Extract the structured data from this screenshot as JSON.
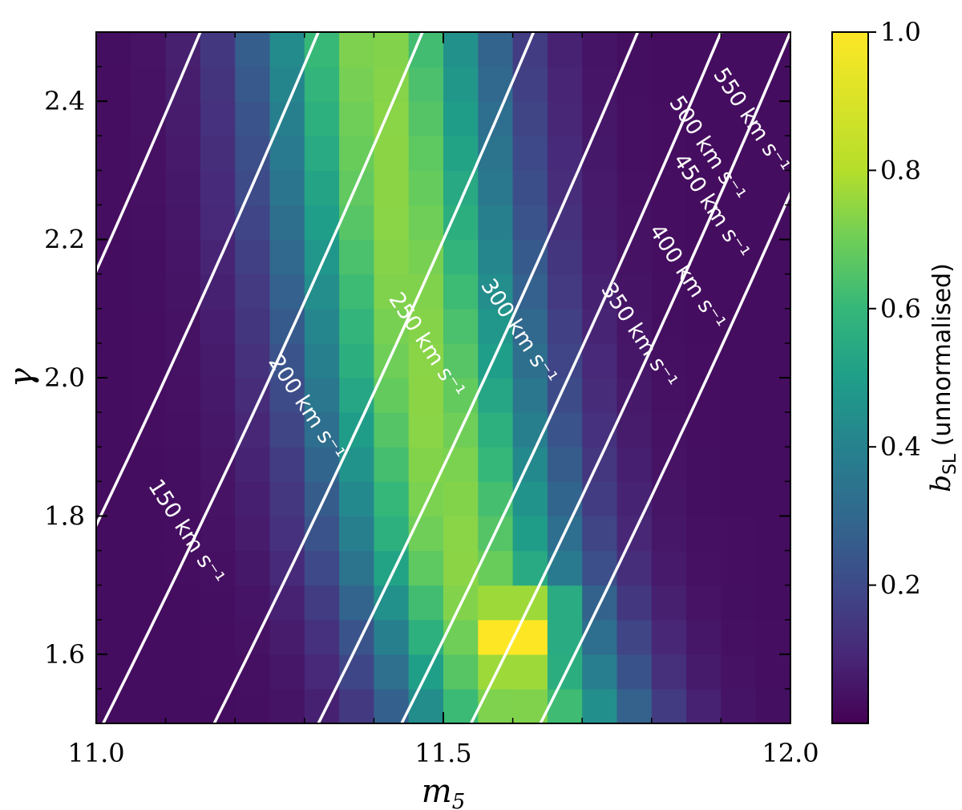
{
  "chart_data": {
    "type": "heatmap",
    "xlabel": "m₅",
    "ylabel": "γ",
    "xlim": [
      11.0,
      12.0
    ],
    "ylim": [
      1.5,
      2.5
    ],
    "x_ticks": [
      11.0,
      11.5,
      12.0
    ],
    "x_tick_labels": [
      "11.0",
      "11.5",
      "12.0"
    ],
    "y_ticks": [
      1.6,
      1.8,
      2.0,
      2.2,
      2.4
    ],
    "y_tick_labels": [
      "1.6",
      "1.8",
      "2.0",
      "2.2",
      "2.4"
    ],
    "grid": false,
    "colormap": "viridis",
    "colorbar": {
      "label": "b_SL (unnormalised)",
      "label_main": "b",
      "label_sub": "SL",
      "label_suffix": " (unnormalised)",
      "range": [
        0.0,
        1.0
      ],
      "ticks": [
        0.2,
        0.4,
        0.6,
        0.8,
        1.0
      ],
      "tick_labels": [
        "0.2",
        "0.4",
        "0.6",
        "0.8",
        "1.0"
      ]
    },
    "heatmap": {
      "nx": 20,
      "ny": 20,
      "x_range": [
        11.0,
        12.0
      ],
      "y_range": [
        1.5,
        2.5
      ],
      "ridge": [
        {
          "y": 1.5,
          "x": 11.61
        },
        {
          "y": 1.75,
          "x": 11.52
        },
        {
          "y": 2.0,
          "x": 11.47
        },
        {
          "y": 2.25,
          "x": 11.43
        },
        {
          "y": 2.5,
          "x": 11.4
        }
      ],
      "peak": {
        "x": 11.6,
        "y": 1.61,
        "value": 1.0
      },
      "ridge_max": 0.74,
      "ridge_width": 0.17,
      "background": 0.03,
      "bright_band": {
        "y_min": 1.55,
        "y_max": 1.675,
        "value": 0.8
      }
    },
    "contours": [
      {
        "label": "150 km s⁻¹",
        "x_at_top": 11.0,
        "slope": -0.56
      },
      {
        "label": "200 km s⁻¹",
        "x_at_top": 11.15,
        "slope": -0.42
      },
      {
        "label": "250 km s⁻¹",
        "x_at_top": 11.32,
        "slope": -0.42
      },
      {
        "label": "300 km s⁻¹",
        "x_at_top": 11.47,
        "slope": -0.42
      },
      {
        "label": "350 km s⁻¹",
        "x_at_top": 11.63,
        "slope": -0.42
      },
      {
        "label": "400 km s⁻¹",
        "x_at_top": 11.78,
        "slope": -0.42
      },
      {
        "label": "450 km s⁻¹",
        "x_at_top": 11.9,
        "slope": -0.42
      },
      {
        "label": "500 km s⁻¹",
        "x_at_top": 12.0,
        "slope": -0.42
      },
      {
        "label": "550 km s⁻¹",
        "x_at_top": 12.1,
        "slope": -0.42
      }
    ]
  }
}
